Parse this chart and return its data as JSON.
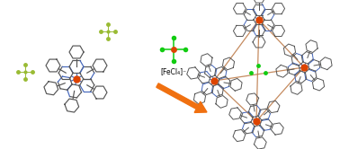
{
  "bg_color": "#ffffff",
  "fe_color": "#dd4400",
  "n_color": "#4466bb",
  "c_color": "#555555",
  "cl_color": "#11cc11",
  "bf4_color": "#99bb33",
  "tet_bond_color": "#bb7744",
  "arrow_color": "#f07010",
  "label_fecl4": "[FeCl₄]⁻",
  "label_fontsize": 5.5,
  "fig_width": 3.78,
  "fig_height": 1.66
}
